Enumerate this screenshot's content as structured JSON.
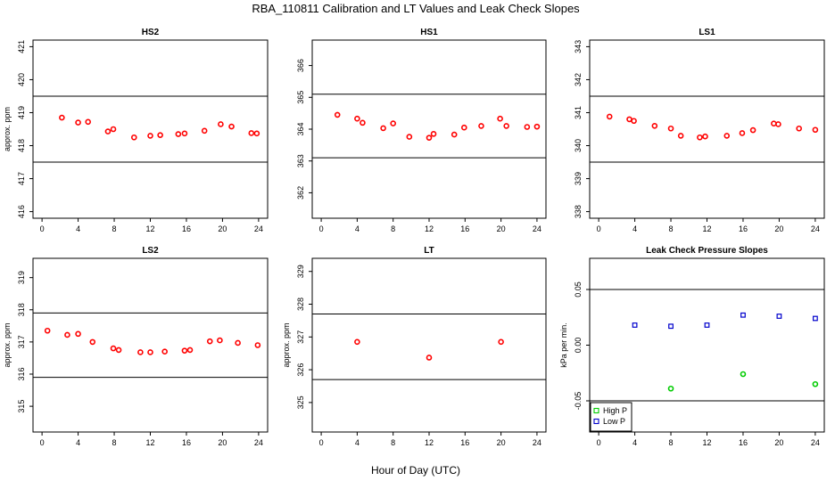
{
  "title": "RBA_110811  Calibration and LT Values and Leak Check Slopes",
  "xlabel": "Hour of Day (UTC)",
  "chart_data": [
    {
      "type": "scatter",
      "title": "HS2",
      "ylabel": "approx. ppm",
      "xlim": [
        -1,
        25
      ],
      "ylim": [
        415.8,
        421.2
      ],
      "xticks": [
        "0",
        "4",
        "8",
        "12",
        "16",
        "20",
        "24"
      ],
      "yticks": [
        "416",
        "417",
        "418",
        "419",
        "420",
        "421"
      ],
      "hlines": [
        419.5,
        417.5
      ],
      "series": [
        {
          "color": "#ff0000",
          "marker": "circle",
          "x": [
            2.2,
            4.0,
            5.1,
            7.3,
            7.9,
            10.2,
            12.0,
            13.1,
            15.1,
            15.8,
            18.0,
            19.8,
            21.0,
            23.2,
            23.8
          ],
          "y": [
            418.85,
            418.7,
            418.72,
            418.43,
            418.5,
            418.25,
            418.3,
            418.32,
            418.35,
            418.37,
            418.45,
            418.65,
            418.58,
            418.38,
            418.37
          ]
        }
      ]
    },
    {
      "type": "scatter",
      "title": "HS1",
      "ylabel": "",
      "xlim": [
        -1,
        25
      ],
      "ylim": [
        361.2,
        366.8
      ],
      "xticks": [
        "0",
        "4",
        "8",
        "12",
        "16",
        "20",
        "24"
      ],
      "yticks": [
        "362",
        "363",
        "364",
        "365",
        "366"
      ],
      "hlines": [
        365.1,
        363.1
      ],
      "series": [
        {
          "color": "#ff0000",
          "marker": "circle",
          "x": [
            1.8,
            4.0,
            4.6,
            6.9,
            8.0,
            9.8,
            12.0,
            12.5,
            14.8,
            15.9,
            17.8,
            19.9,
            20.6,
            22.9,
            24.0
          ],
          "y": [
            364.45,
            364.33,
            364.2,
            364.03,
            364.18,
            363.76,
            363.73,
            363.85,
            363.83,
            364.05,
            364.1,
            364.33,
            364.1,
            364.07,
            364.08
          ]
        }
      ]
    },
    {
      "type": "scatter",
      "title": "LS1",
      "ylabel": "",
      "xlim": [
        -1,
        25
      ],
      "ylim": [
        337.8,
        343.2
      ],
      "xticks": [
        "0",
        "4",
        "8",
        "12",
        "16",
        "20",
        "24"
      ],
      "yticks": [
        "338",
        "339",
        "340",
        "341",
        "342",
        "343"
      ],
      "hlines": [
        341.5,
        339.5
      ],
      "series": [
        {
          "color": "#ff0000",
          "marker": "circle",
          "x": [
            1.2,
            3.4,
            3.9,
            6.2,
            8.0,
            9.1,
            11.2,
            11.8,
            14.2,
            15.9,
            17.1,
            19.4,
            19.9,
            22.2,
            24.0
          ],
          "y": [
            340.88,
            340.8,
            340.75,
            340.6,
            340.52,
            340.3,
            340.25,
            340.28,
            340.3,
            340.38,
            340.47,
            340.67,
            340.65,
            340.52,
            340.48
          ]
        }
      ]
    },
    {
      "type": "scatter",
      "title": "LS2",
      "ylabel": "approx. ppm",
      "xlim": [
        -1,
        25
      ],
      "ylim": [
        314.2,
        319.6
      ],
      "xticks": [
        "0",
        "4",
        "8",
        "12",
        "16",
        "20",
        "24"
      ],
      "yticks": [
        "315",
        "316",
        "317",
        "318",
        "319"
      ],
      "hlines": [
        317.9,
        315.9
      ],
      "series": [
        {
          "color": "#ff0000",
          "marker": "circle",
          "x": [
            0.6,
            2.8,
            4.0,
            5.6,
            7.9,
            8.5,
            10.9,
            12.0,
            13.6,
            15.8,
            16.4,
            18.6,
            19.7,
            21.7,
            23.9
          ],
          "y": [
            317.35,
            317.22,
            317.25,
            317.0,
            316.8,
            316.75,
            316.68,
            316.68,
            316.7,
            316.73,
            316.75,
            317.02,
            317.05,
            316.97,
            316.9
          ]
        }
      ]
    },
    {
      "type": "scatter",
      "title": "LT",
      "ylabel": "approx. ppm",
      "xlim": [
        -1,
        25
      ],
      "ylim": [
        324.1,
        329.4
      ],
      "xticks": [
        "0",
        "4",
        "8",
        "12",
        "16",
        "20",
        "24"
      ],
      "yticks": [
        "325",
        "326",
        "327",
        "328",
        "329"
      ],
      "hlines": [
        327.7,
        325.7
      ],
      "series": [
        {
          "color": "#ff0000",
          "marker": "circle",
          "x": [
            4.0,
            12.0,
            20.0
          ],
          "y": [
            326.85,
            326.37,
            326.85
          ]
        }
      ]
    },
    {
      "type": "scatter",
      "title": "Leak Check Pressure Slopes",
      "ylabel": "kPa per min.",
      "xlim": [
        -1,
        25
      ],
      "ylim": [
        -0.078,
        0.078
      ],
      "xticks": [
        "0",
        "4",
        "8",
        "12",
        "16",
        "20",
        "24"
      ],
      "yticks": [
        "-0.05",
        "0.00",
        "0.05"
      ],
      "ytick_values": [
        -0.05,
        0.0,
        0.05
      ],
      "hlines": [
        0.05,
        -0.05
      ],
      "legend": {
        "position": "bottom-left"
      },
      "series": [
        {
          "name": "High P",
          "color": "#00cc00",
          "marker": "circle",
          "x": [
            8.0,
            16.0,
            24.0
          ],
          "y": [
            -0.039,
            -0.026,
            -0.035
          ]
        },
        {
          "name": "Low P",
          "color": "#0000cc",
          "marker": "square",
          "x": [
            4.0,
            8.0,
            12.0,
            16.0,
            20.0,
            24.0
          ],
          "y": [
            0.018,
            0.017,
            0.018,
            0.027,
            0.026,
            0.024
          ]
        }
      ]
    }
  ]
}
